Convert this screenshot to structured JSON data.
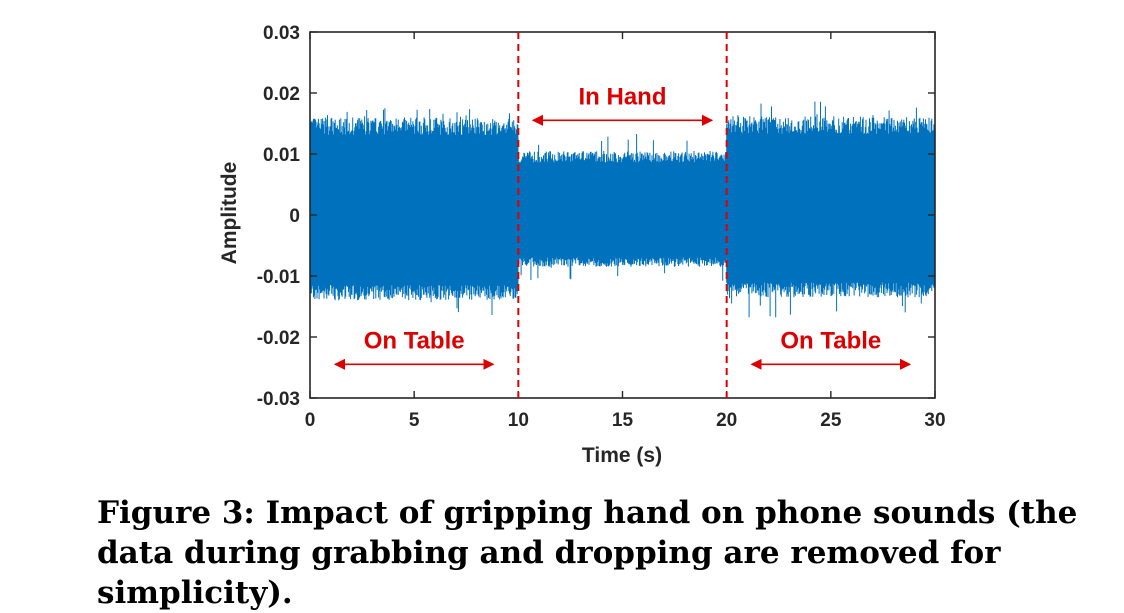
{
  "chart_data": {
    "type": "line",
    "xlabel": "Time (s)",
    "ylabel": "Amplitude",
    "xlim": [
      0,
      30
    ],
    "ylim": [
      -0.03,
      0.03
    ],
    "xticks": [
      0,
      5,
      10,
      15,
      20,
      25,
      30
    ],
    "xtick_labels": [
      "0",
      "5",
      "10",
      "15",
      "20",
      "25",
      "30"
    ],
    "yticks": [
      -0.03,
      -0.02,
      -0.01,
      0,
      0.01,
      0.02,
      0.03
    ],
    "ytick_labels": [
      "-0.03",
      "-0.02",
      "-0.01",
      "0",
      "0.01",
      "0.02",
      "0.03"
    ],
    "grid": false,
    "series": [
      {
        "color": "#0072bd",
        "segments": [
          {
            "x_start": 0,
            "x_end": 10,
            "envelope_max": 0.016,
            "envelope_min": -0.014,
            "peak_max": 0.0175,
            "peak_min": -0.0165
          },
          {
            "x_start": 10,
            "x_end": 20,
            "envelope_max": 0.0105,
            "envelope_min": -0.0085,
            "peak_max": 0.0135,
            "peak_min": -0.011
          },
          {
            "x_start": 20,
            "x_end": 30,
            "envelope_max": 0.0162,
            "envelope_min": -0.0135,
            "peak_max": 0.019,
            "peak_min": -0.017
          }
        ]
      }
    ],
    "vertical_lines": [
      {
        "x": 10,
        "color": "#dd0000",
        "style": "dashed"
      },
      {
        "x": 20,
        "color": "#dd0000",
        "style": "dashed"
      }
    ],
    "annotations": [
      {
        "text": "In Hand",
        "x_from": 10.7,
        "x_to": 19.3,
        "y": 0.017,
        "color": "#dd0000"
      },
      {
        "text": "On Table",
        "x_from": 1.2,
        "x_to": 8.8,
        "y": -0.023,
        "color": "#dd0000"
      },
      {
        "text": "On Table",
        "x_from": 21.2,
        "x_to": 28.8,
        "y": -0.023,
        "color": "#dd0000"
      }
    ]
  },
  "caption": "Figure 3: Impact of gripping hand on phone sounds (the data during grabbing and dropping are removed for simplicity)."
}
